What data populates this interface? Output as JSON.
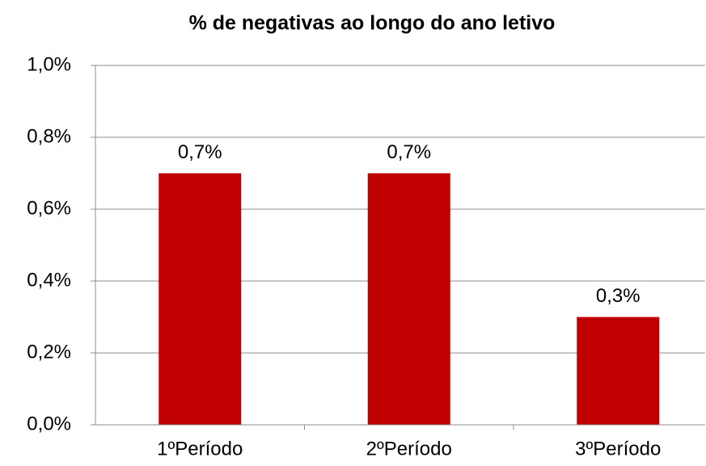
{
  "chart_data": {
    "type": "bar",
    "title": "% de negativas ao longo do ano letivo",
    "categories": [
      "1ºPeríodo",
      "2ºPeríodo",
      "3ºPeríodo"
    ],
    "values": [
      0.7,
      0.7,
      0.3
    ],
    "value_labels": [
      "0,7%",
      "0,7%",
      "0,3%"
    ],
    "color": "#c00000",
    "ylim": [
      0,
      1.0
    ],
    "yticks": [
      {
        "value": 0,
        "label": "0,0%"
      },
      {
        "value": 0.2,
        "label": "0,2%"
      },
      {
        "value": 0.4,
        "label": "0,4%"
      },
      {
        "value": 0.6,
        "label": "0,6%"
      },
      {
        "value": 0.8,
        "label": "0,8%"
      },
      {
        "value": 1.0,
        "label": "1,0%"
      }
    ],
    "grid": true
  }
}
